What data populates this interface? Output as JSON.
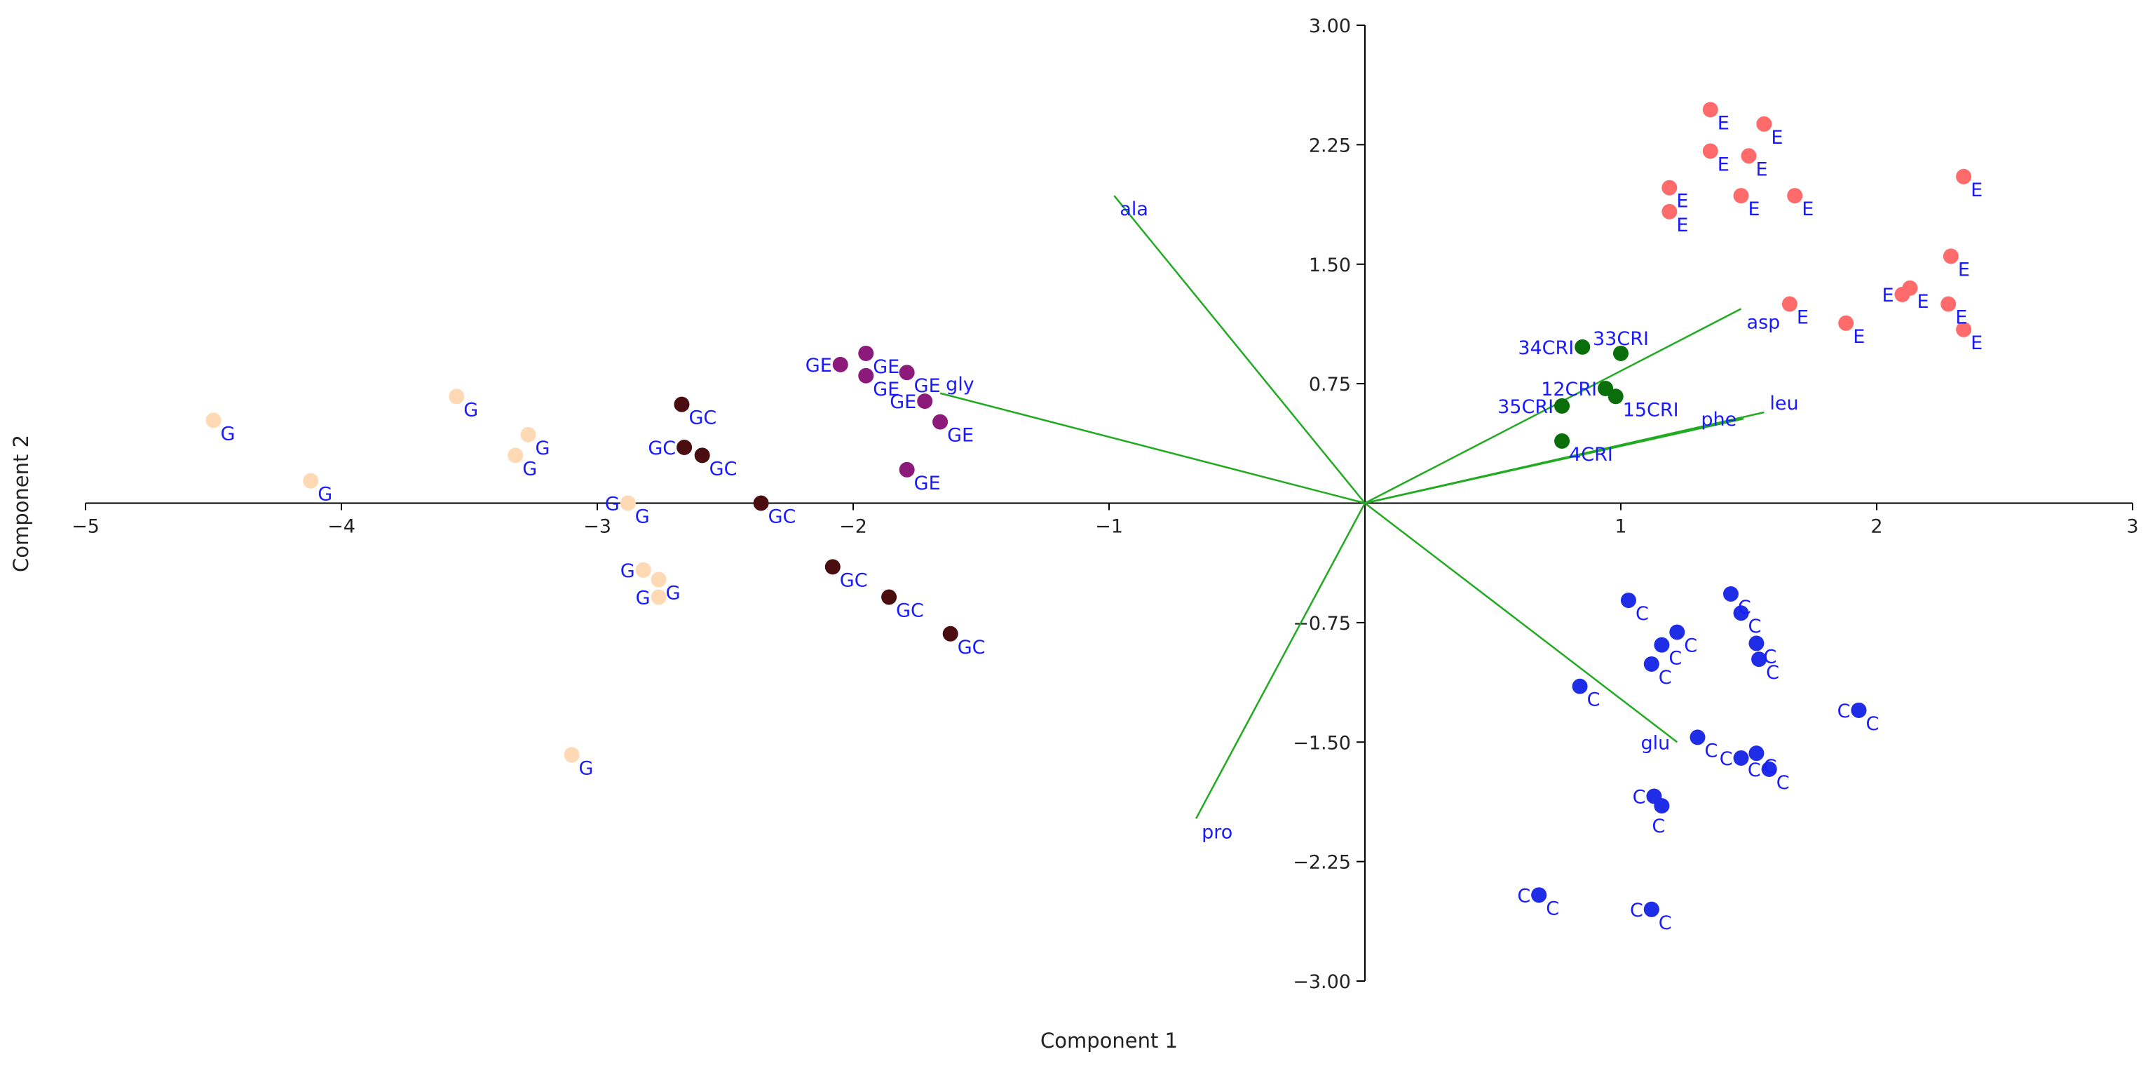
{
  "chart_data": {
    "type": "scatter",
    "subtype": "biplot",
    "title": "",
    "xlabel": "Component 1",
    "ylabel": "Component 2",
    "xlim": [
      -5,
      3
    ],
    "ylim": [
      -3,
      3
    ],
    "xticks": [
      -5,
      -4,
      -3,
      -2,
      -1,
      1,
      2,
      3
    ],
    "xtick_labels": [
      "−5",
      "−4",
      "−3",
      "−2",
      "−1",
      "1",
      "2",
      "3"
    ],
    "yticks": [
      3,
      2.25,
      1.5,
      0.75,
      -0.75,
      -1.5,
      -2.25,
      -3
    ],
    "ytick_labels": [
      "3.00",
      "2.25",
      "1.50",
      "0.75",
      "−0.75",
      "−1.50",
      "−2.25",
      "−3.00"
    ],
    "label_color": "#1a1aff",
    "vector_color": "#22aa22",
    "axis_color": "#000000",
    "groups": [
      {
        "name": "G",
        "color": "#ffd9b3",
        "points": [
          {
            "x": -4.5,
            "y": 0.52,
            "label": "G",
            "pos": "br"
          },
          {
            "x": -4.12,
            "y": 0.14,
            "label": "G",
            "pos": "br"
          },
          {
            "x": -3.55,
            "y": 0.67,
            "label": "G",
            "pos": "br"
          },
          {
            "x": -3.27,
            "y": 0.43,
            "label": "G",
            "pos": "br"
          },
          {
            "x": -3.32,
            "y": 0.3,
            "label": "G",
            "pos": "br"
          },
          {
            "x": -2.88,
            "y": 0.0,
            "label": "G",
            "pos": "l"
          },
          {
            "x": -2.88,
            "y": 0.0,
            "label": "G",
            "pos": "br"
          },
          {
            "x": -2.82,
            "y": -0.42,
            "label": "G",
            "pos": "l"
          },
          {
            "x": -2.76,
            "y": -0.48,
            "label": "G",
            "pos": "br"
          },
          {
            "x": -2.76,
            "y": -0.59,
            "label": "G",
            "pos": "l"
          },
          {
            "x": -3.1,
            "y": -1.58,
            "label": "G",
            "pos": "br"
          }
        ]
      },
      {
        "name": "GC",
        "color": "#4a0d10",
        "points": [
          {
            "x": -2.67,
            "y": 0.62,
            "label": "GC",
            "pos": "br"
          },
          {
            "x": -2.66,
            "y": 0.35,
            "label": "GC",
            "pos": "l"
          },
          {
            "x": -2.59,
            "y": 0.3,
            "label": "GC",
            "pos": "br"
          },
          {
            "x": -2.36,
            "y": 0.0,
            "label": "GC",
            "pos": "br"
          },
          {
            "x": -2.08,
            "y": -0.4,
            "label": "GC",
            "pos": "br"
          },
          {
            "x": -1.86,
            "y": -0.59,
            "label": "GC",
            "pos": "br"
          },
          {
            "x": -1.62,
            "y": -0.82,
            "label": "GC",
            "pos": "br"
          }
        ]
      },
      {
        "name": "GE",
        "color": "#8b1a7a",
        "points": [
          {
            "x": -2.05,
            "y": 0.87,
            "label": "GE",
            "pos": "l"
          },
          {
            "x": -1.95,
            "y": 0.94,
            "label": "GE",
            "pos": "br"
          },
          {
            "x": -1.95,
            "y": 0.8,
            "label": "GE",
            "pos": "br"
          },
          {
            "x": -1.79,
            "y": 0.82,
            "label": "GE",
            "pos": "br"
          },
          {
            "x": -1.72,
            "y": 0.64,
            "label": "GE",
            "pos": "l"
          },
          {
            "x": -1.66,
            "y": 0.51,
            "label": "GE",
            "pos": "br"
          },
          {
            "x": -1.79,
            "y": 0.21,
            "label": "GE",
            "pos": "br"
          }
        ]
      },
      {
        "name": "CRI",
        "color": "#0a6e0a",
        "points": [
          {
            "x": 0.85,
            "y": 0.98,
            "label": "34CRI",
            "pos": "l"
          },
          {
            "x": 1.0,
            "y": 0.94,
            "label": "33CRI",
            "pos": "t"
          },
          {
            "x": 0.94,
            "y": 0.72,
            "label": "12CRI",
            "pos": "l"
          },
          {
            "x": 0.98,
            "y": 0.67,
            "label": "15CRI",
            "pos": "br"
          },
          {
            "x": 0.77,
            "y": 0.61,
            "label": "35CRI",
            "pos": "l"
          },
          {
            "x": 0.77,
            "y": 0.39,
            "label": "4CRI",
            "pos": "br"
          }
        ]
      },
      {
        "name": "E",
        "color": "#ff6b6b",
        "points": [
          {
            "x": 1.35,
            "y": 2.47,
            "label": "E",
            "pos": "br"
          },
          {
            "x": 1.56,
            "y": 2.38,
            "label": "E",
            "pos": "br"
          },
          {
            "x": 1.35,
            "y": 2.21,
            "label": "E",
            "pos": "br"
          },
          {
            "x": 1.5,
            "y": 2.18,
            "label": "E",
            "pos": "br"
          },
          {
            "x": 1.19,
            "y": 1.98,
            "label": "E",
            "pos": "br"
          },
          {
            "x": 1.47,
            "y": 1.93,
            "label": "E",
            "pos": "br"
          },
          {
            "x": 1.68,
            "y": 1.93,
            "label": "E",
            "pos": "br"
          },
          {
            "x": 1.19,
            "y": 1.83,
            "label": "E",
            "pos": "br"
          },
          {
            "x": 2.34,
            "y": 2.05,
            "label": "E",
            "pos": "br"
          },
          {
            "x": 2.29,
            "y": 1.55,
            "label": "E",
            "pos": "br"
          },
          {
            "x": 2.13,
            "y": 1.35,
            "label": "E",
            "pos": "br"
          },
          {
            "x": 2.1,
            "y": 1.31,
            "label": "E",
            "pos": "l"
          },
          {
            "x": 2.28,
            "y": 1.25,
            "label": "E",
            "pos": "br"
          },
          {
            "x": 2.34,
            "y": 1.09,
            "label": "E",
            "pos": "br"
          },
          {
            "x": 1.66,
            "y": 1.25,
            "label": "E",
            "pos": "br"
          },
          {
            "x": 1.88,
            "y": 1.13,
            "label": "E",
            "pos": "br"
          }
        ]
      },
      {
        "name": "C",
        "color": "#1f2ee6",
        "points": [
          {
            "x": 1.03,
            "y": -0.61,
            "label": "C",
            "pos": "br"
          },
          {
            "x": 1.43,
            "y": -0.57,
            "label": "C",
            "pos": "br"
          },
          {
            "x": 1.47,
            "y": -0.69,
            "label": "C",
            "pos": "br"
          },
          {
            "x": 1.22,
            "y": -0.81,
            "label": "C",
            "pos": "br"
          },
          {
            "x": 1.16,
            "y": -0.89,
            "label": "C",
            "pos": "br"
          },
          {
            "x": 1.53,
            "y": -0.88,
            "label": "C",
            "pos": "br"
          },
          {
            "x": 1.12,
            "y": -1.01,
            "label": "C",
            "pos": "br"
          },
          {
            "x": 1.54,
            "y": -0.98,
            "label": "C",
            "pos": "br"
          },
          {
            "x": 0.84,
            "y": -1.15,
            "label": "C",
            "pos": "br"
          },
          {
            "x": 1.93,
            "y": -1.3,
            "label": "C",
            "pos": "l"
          },
          {
            "x": 1.93,
            "y": -1.3,
            "label": "C",
            "pos": "br"
          },
          {
            "x": 1.3,
            "y": -1.47,
            "label": "C",
            "pos": "br"
          },
          {
            "x": 1.47,
            "y": -1.6,
            "label": "C",
            "pos": "l"
          },
          {
            "x": 1.53,
            "y": -1.57,
            "label": "C",
            "pos": "br"
          },
          {
            "x": 1.58,
            "y": -1.67,
            "label": "C",
            "pos": "l"
          },
          {
            "x": 1.58,
            "y": -1.67,
            "label": "C",
            "pos": "br"
          },
          {
            "x": 1.13,
            "y": -1.84,
            "label": "C",
            "pos": "l"
          },
          {
            "x": 1.16,
            "y": -1.9,
            "label": "C",
            "pos": "b"
          },
          {
            "x": 0.68,
            "y": -2.46,
            "label": "C",
            "pos": "l"
          },
          {
            "x": 0.68,
            "y": -2.46,
            "label": "C",
            "pos": "br"
          },
          {
            "x": 1.12,
            "y": -2.55,
            "label": "C",
            "pos": "l"
          },
          {
            "x": 1.12,
            "y": -2.55,
            "label": "C",
            "pos": "br"
          }
        ]
      }
    ],
    "vectors": [
      {
        "name": "ala",
        "x": -0.98,
        "y": 1.93,
        "label_pos": "br"
      },
      {
        "name": "gly",
        "x": -1.66,
        "y": 0.69,
        "label_pos": "tr"
      },
      {
        "name": "asp",
        "x": 1.47,
        "y": 1.22,
        "label_pos": "br"
      },
      {
        "name": "leu",
        "x": 1.56,
        "y": 0.57,
        "label_pos": "tr"
      },
      {
        "name": "phe",
        "x": 1.48,
        "y": 0.53,
        "label_pos": "l"
      },
      {
        "name": "glu",
        "x": 1.22,
        "y": -1.5,
        "label_pos": "l"
      },
      {
        "name": "pro",
        "x": -0.66,
        "y": -1.98,
        "label_pos": "br"
      }
    ]
  }
}
